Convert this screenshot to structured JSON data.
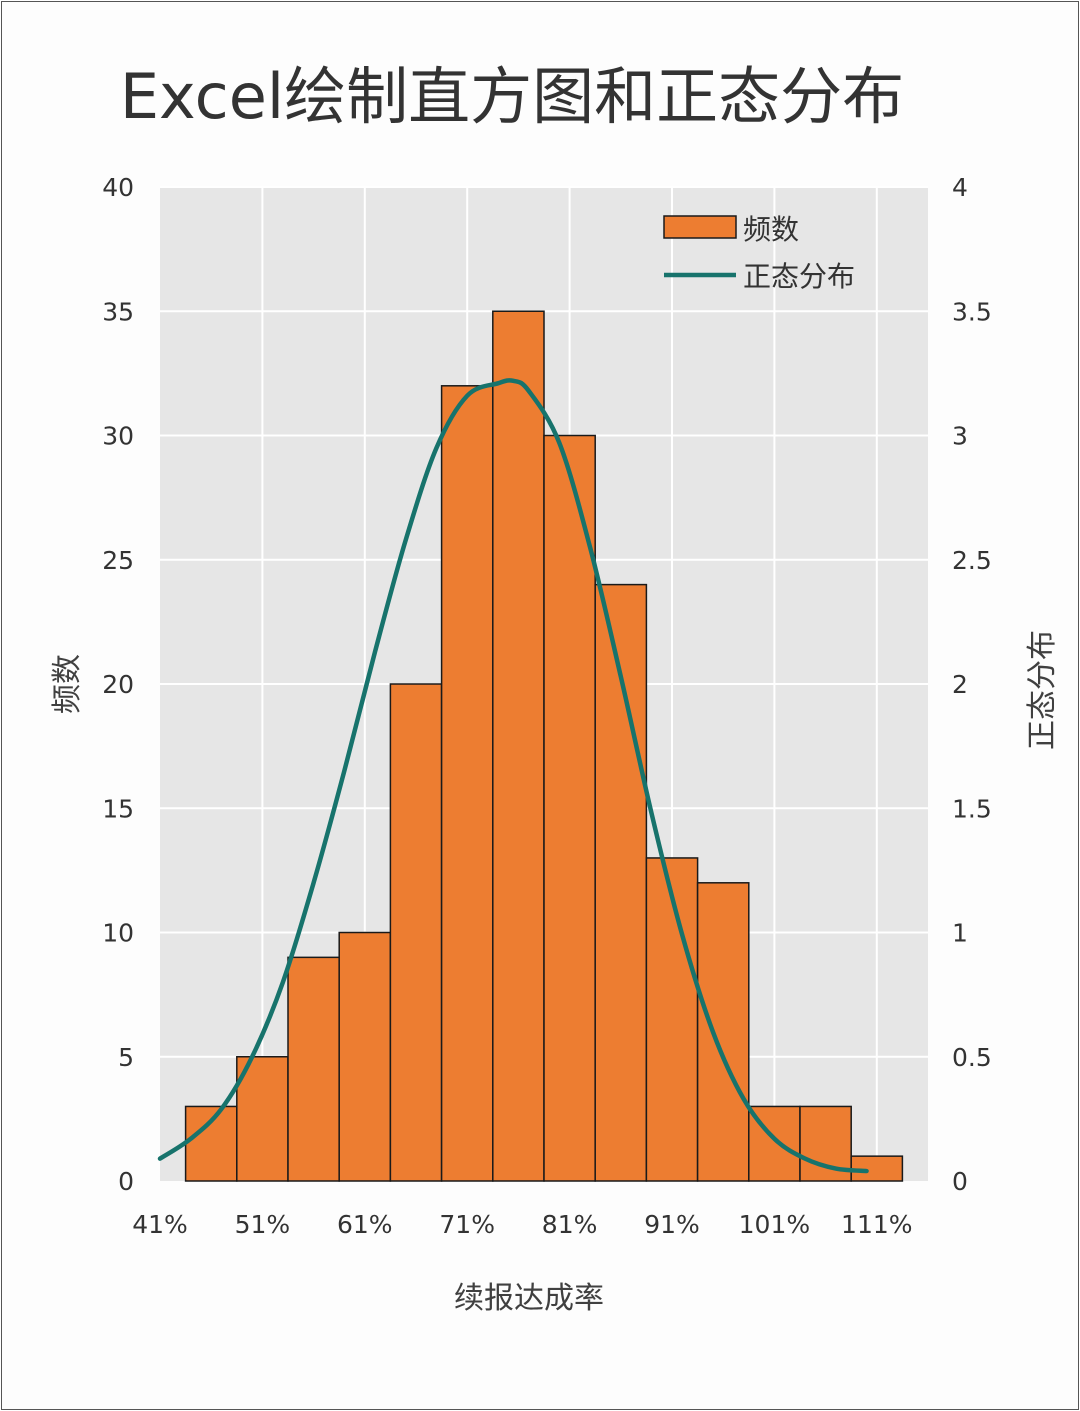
{
  "chart_data": {
    "type": "bar",
    "title": "Excel绘制直方图和正态分布",
    "xlabel": "续报达成率",
    "ylabel": "频数",
    "y2label": "正态分布",
    "x_tick_labels": [
      "41%",
      "51%",
      "61%",
      "71%",
      "81%",
      "91%",
      "101%",
      "111%"
    ],
    "x_ticks": [
      41,
      51,
      61,
      71,
      81,
      91,
      101,
      111
    ],
    "xlim": [
      41,
      116
    ],
    "ylim": [
      0,
      40
    ],
    "y_ticks": [
      0,
      5,
      10,
      15,
      20,
      25,
      30,
      35,
      40
    ],
    "y2lim": [
      0,
      4
    ],
    "y2_tick_labels": [
      "0",
      "0.5",
      "1",
      "1.5",
      "2",
      "2.5",
      "3",
      "3.5",
      "4"
    ],
    "grid": true,
    "legend_position": "top-right",
    "bin_width": 5,
    "bins": [
      {
        "start": 43.5,
        "value": 3
      },
      {
        "start": 48.5,
        "value": 5
      },
      {
        "start": 53.5,
        "value": 9
      },
      {
        "start": 58.5,
        "value": 10
      },
      {
        "start": 63.5,
        "value": 20
      },
      {
        "start": 68.5,
        "value": 32
      },
      {
        "start": 73.5,
        "value": 35
      },
      {
        "start": 78.5,
        "value": 30
      },
      {
        "start": 83.5,
        "value": 24
      },
      {
        "start": 88.5,
        "value": 13
      },
      {
        "start": 93.5,
        "value": 12
      },
      {
        "start": 98.5,
        "value": 3
      },
      {
        "start": 103.5,
        "value": 3
      },
      {
        "start": 108.5,
        "value": 1
      }
    ],
    "series": [
      {
        "name": "频数",
        "type": "bar",
        "color": "#ed7d31"
      },
      {
        "name": "正态分布",
        "type": "line",
        "color": "#17736c",
        "axis": "right",
        "x": [
          41,
          44,
          47,
          50,
          53,
          56,
          59,
          62,
          65,
          68,
          71,
          74,
          75.5,
          77,
          80,
          83,
          86,
          89,
          92,
          95,
          98,
          101,
          104,
          107,
          110
        ],
        "y": [
          0.09,
          0.17,
          0.29,
          0.5,
          0.8,
          1.2,
          1.65,
          2.13,
          2.58,
          2.95,
          3.16,
          3.21,
          3.22,
          3.18,
          2.97,
          2.55,
          2.03,
          1.48,
          0.99,
          0.6,
          0.33,
          0.17,
          0.09,
          0.05,
          0.04
        ]
      }
    ]
  },
  "colors": {
    "plot_background": "#e6e6e6",
    "grid": "#ffffff",
    "bar_fill": "#ed7d31",
    "bar_edge": "#1a1a1a",
    "curve": "#17736c"
  }
}
